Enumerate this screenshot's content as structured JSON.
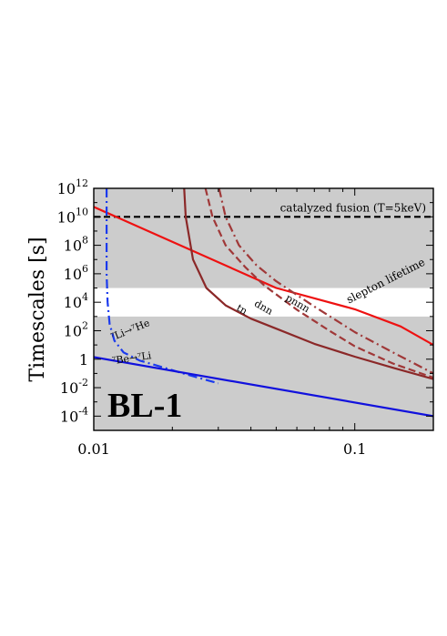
{
  "chart_data": {
    "type": "line",
    "panel_label": "BL-1",
    "ylabel": "Timescales [s]",
    "xlabel": "",
    "x_scale": "log",
    "y_scale": "log",
    "xlim": [
      0.01,
      0.2
    ],
    "ylim": [
      1e-05,
      1000000000000.0
    ],
    "x_ticks": [
      {
        "value": 0.01,
        "label": "0.01"
      },
      {
        "value": 0.1,
        "label": "0.1"
      }
    ],
    "y_ticks": [
      {
        "exp": 12,
        "base": "10",
        "sup": "12"
      },
      {
        "exp": 10,
        "base": "10",
        "sup": "10"
      },
      {
        "exp": 8,
        "base": "10",
        "sup": "8"
      },
      {
        "exp": 6,
        "base": "10",
        "sup": "6"
      },
      {
        "exp": 4,
        "base": "10",
        "sup": "4"
      },
      {
        "exp": 2,
        "base": "10",
        "sup": "2"
      },
      {
        "exp": 0,
        "base": "1",
        "sup": ""
      },
      {
        "exp": -2,
        "base": "10",
        "sup": "-2"
      },
      {
        "exp": -4,
        "base": "10",
        "sup": "-4"
      }
    ],
    "shaded_bands": [
      {
        "y": [
          1e-05,
          1000
        ],
        "color": "#cccccc"
      },
      {
        "y": [
          1000,
          100000
        ],
        "color": "#ffffff"
      },
      {
        "y": [
          100000,
          1000000000000.0
        ],
        "color": "#cccccc"
      }
    ],
    "hlines": [
      {
        "y": 10000000000.0,
        "label": "catalyzed fusion (T=5keV)",
        "color": "#000000",
        "style": "dashed"
      }
    ],
    "series": [
      {
        "name": "slepton lifetime",
        "color": "#ee1111",
        "style": "solid",
        "x": [
          0.01,
          0.05,
          0.1,
          0.15,
          0.2
        ],
        "y": [
          50000000000.0,
          100000.0,
          3200,
          200,
          10
        ]
      },
      {
        "name": "tn",
        "color": "#8b2828",
        "style": "solid",
        "x": [
          0.0222,
          0.0225,
          0.024,
          0.027,
          0.032,
          0.04,
          0.05,
          0.07,
          0.1,
          0.14,
          0.2
        ],
        "y": [
          1000000000000.0,
          10000000000.0,
          10000000.0,
          100000.0,
          6000,
          700,
          140,
          12,
          1.5,
          0.25,
          0.04
        ]
      },
      {
        "name": "dnn",
        "color": "#a03838",
        "style": "dashed",
        "x": [
          0.0268,
          0.0285,
          0.032,
          0.038,
          0.045,
          0.06,
          0.08,
          0.1,
          0.14,
          0.2
        ],
        "y": [
          1000000000000.0,
          10000000000.0,
          100000000.0,
          3000000.0,
          150000.0,
          3000,
          100,
          8,
          0.5,
          0.05
        ]
      },
      {
        "name": "pnnn",
        "color": "#a03838",
        "style": "dashdot",
        "x": [
          0.0302,
          0.032,
          0.036,
          0.042,
          0.05,
          0.07,
          0.1,
          0.14,
          0.2
        ],
        "y": [
          1000000000000.0,
          10000000000.0,
          100000000.0,
          4000000.0,
          300000.0,
          5000,
          80,
          3,
          0.1
        ]
      },
      {
        "name": "⁷Li→⁷He",
        "color": "#1a3aee",
        "style": "dashdot",
        "x": [
          0.0112,
          0.0112,
          0.0113,
          0.0115,
          0.012,
          0.013,
          0.015,
          0.018,
          0.022,
          0.03
        ],
        "y": [
          1000000000000.0,
          1000000.0,
          10000.0,
          300,
          20,
          3,
          0.8,
          0.3,
          0.1,
          0.02
        ]
      },
      {
        "name": "⁷Be→⁷Li",
        "color": "#1111dd",
        "style": "solid",
        "x": [
          0.01,
          0.2
        ],
        "y": [
          1.4,
          0.0001
        ]
      }
    ],
    "annotations": [
      {
        "text": "slepton lifetime",
        "x": 0.095,
        "y": 8000,
        "angle": 27,
        "size": "annot"
      },
      {
        "text": "tn",
        "x": 0.035,
        "y": 3000,
        "angle": -30,
        "size": "annot-sm"
      },
      {
        "text": "dnn",
        "x": 0.041,
        "y": 6000,
        "angle": -30,
        "size": "annot-sm"
      },
      {
        "text": "pnnn",
        "x": 0.054,
        "y": 15000.0,
        "angle": -30,
        "size": "annot-sm"
      },
      {
        "text": "⁷Li→⁷He",
        "x": 0.0118,
        "y": 20,
        "angle": 22,
        "size": "annot-sm"
      },
      {
        "text": "⁷Be→⁷Li",
        "x": 0.0118,
        "y": 0.45,
        "angle": 8,
        "size": "annot-sm"
      }
    ]
  }
}
